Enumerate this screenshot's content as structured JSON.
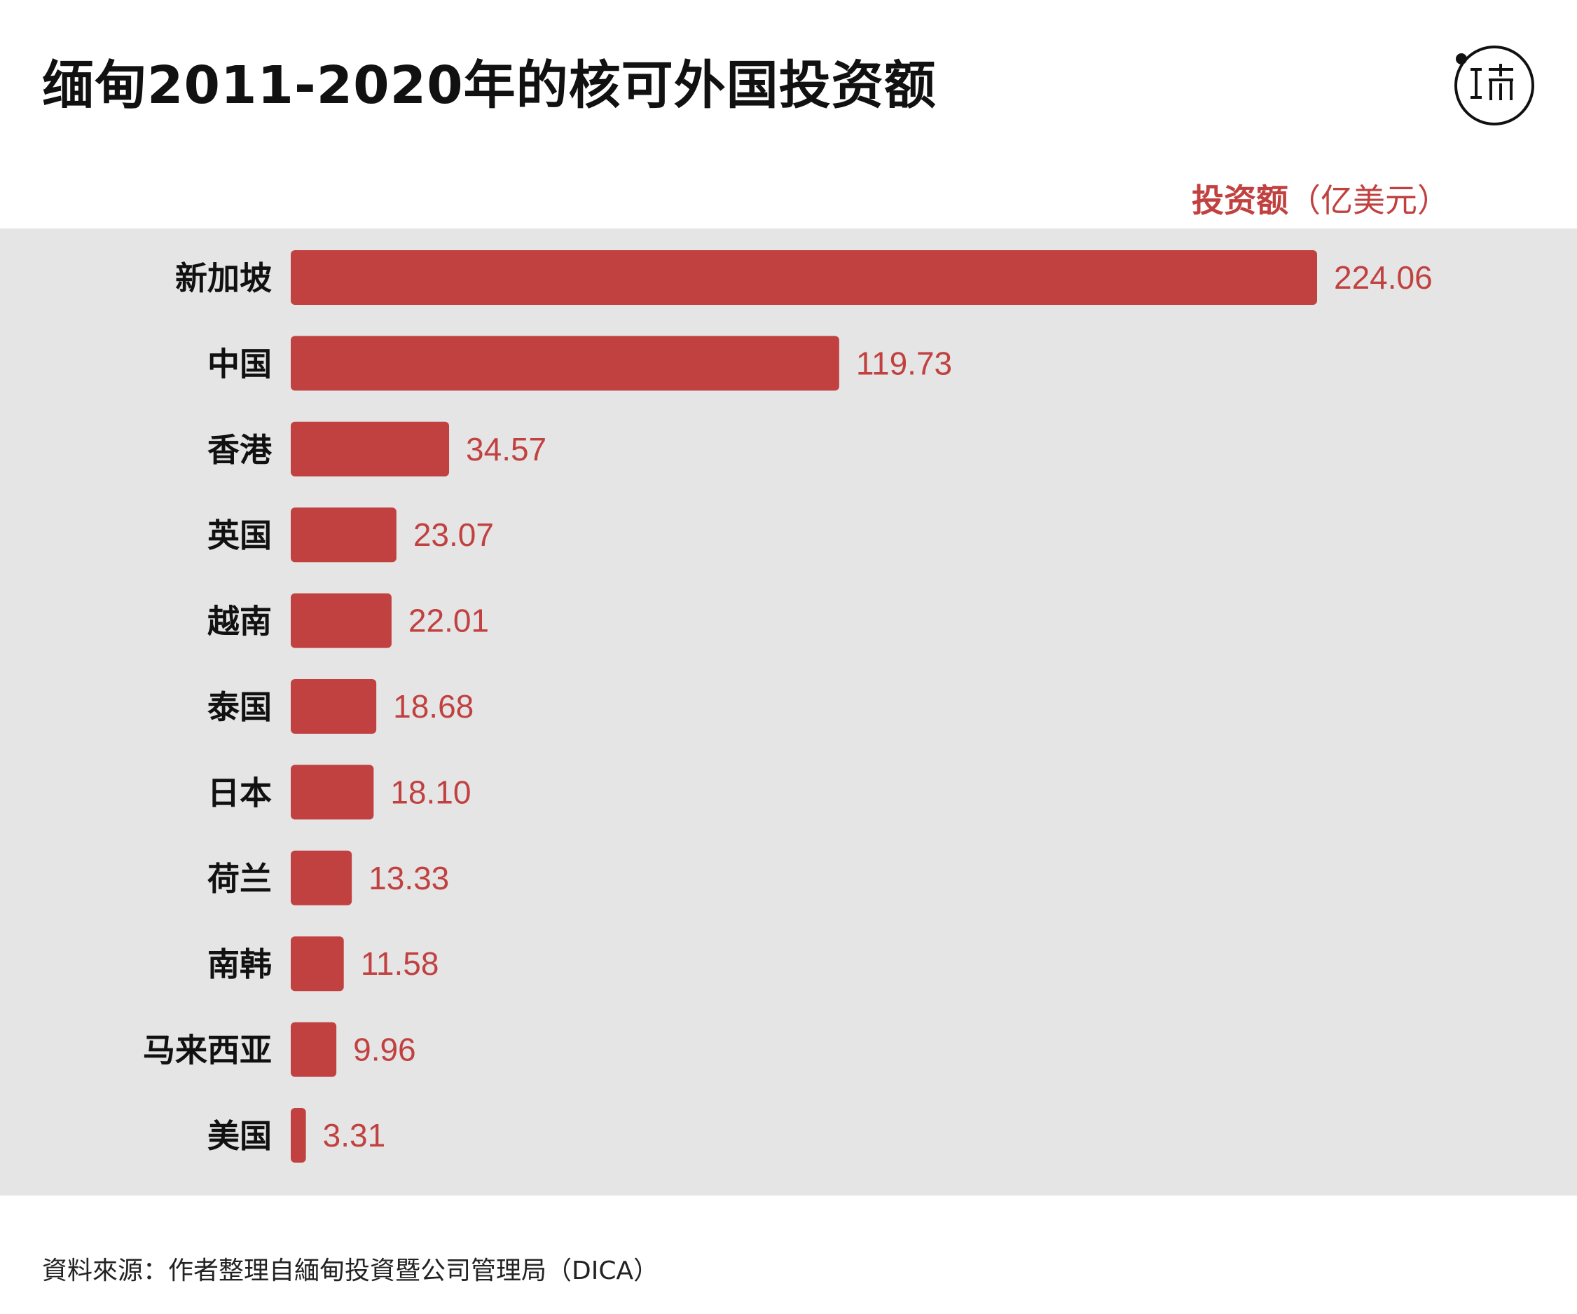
{
  "title": "缅甸2011-2020年的核可外国投资额",
  "logo": {
    "icon": "initium-logo-icon",
    "text": "端"
  },
  "unit_label": {
    "strong": "投资额",
    "rest": "（亿美元）"
  },
  "source": "資料來源：作者整理自緬甸投資暨公司管理局（DICA）",
  "colors": {
    "bar": "#c14140",
    "value_text": "#c14140",
    "plot_background": "#e5e5e5",
    "label_text": "#111111"
  },
  "chart_data": {
    "type": "bar",
    "orientation": "horizontal",
    "categories": [
      "新加坡",
      "中国",
      "香港",
      "英国",
      "越南",
      "泰国",
      "日本",
      "荷兰",
      "南韩",
      "马来西亚",
      "美国"
    ],
    "values": [
      224.06,
      119.73,
      34.57,
      23.07,
      22.01,
      18.68,
      18.1,
      13.33,
      11.58,
      9.96,
      3.31
    ],
    "value_labels": [
      "224.06",
      "119.73",
      "34.57",
      "23.07",
      "22.01",
      "18.68",
      "18.10",
      "13.33",
      "11.58",
      "9.96",
      "3.31"
    ],
    "title": "缅甸2011-2020年的核可外国投资额",
    "xlabel": "投资额（亿美元）",
    "ylabel": "",
    "xlim": [
      0,
      224.06
    ],
    "grid": false,
    "legend": "none"
  }
}
